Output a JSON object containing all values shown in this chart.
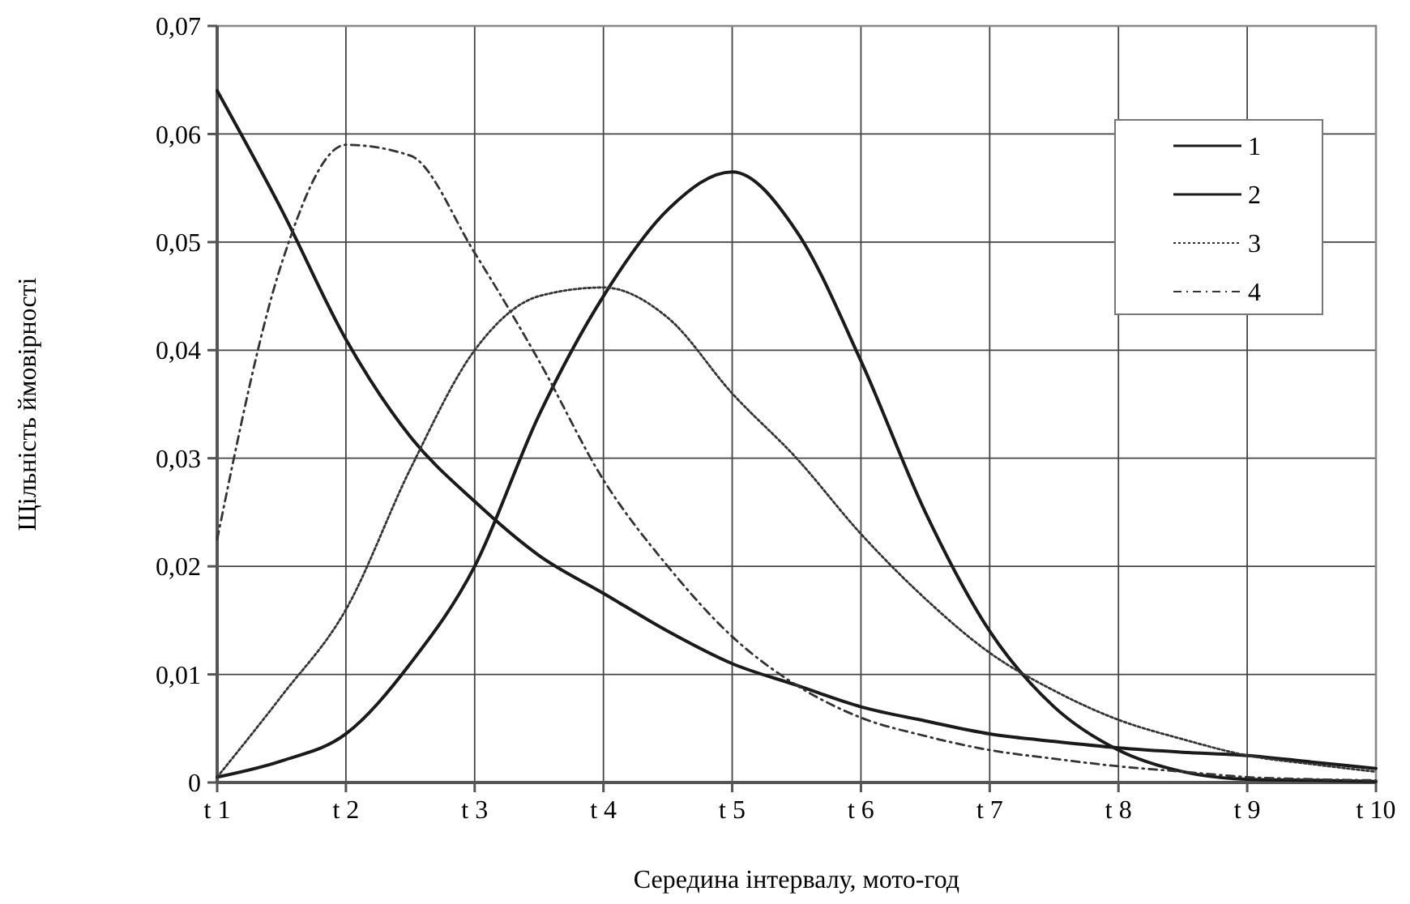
{
  "chart_data": {
    "type": "line",
    "xlabel": "Середина інтервалу, мото-год",
    "ylabel": "Щільність ймовірності",
    "categories": [
      "t 1",
      null,
      "t 2",
      null,
      "t 3",
      null,
      "t 4",
      null,
      "t 5",
      null,
      "t 6",
      null,
      "t 7",
      null,
      "t 8",
      null,
      "t 9",
      null,
      "t 10"
    ],
    "ylim": [
      0,
      0.07
    ],
    "yticks": [
      0,
      {
        "value": 0.01,
        "label": "0,01"
      },
      {
        "value": 0.02,
        "label": "0,02"
      },
      {
        "value": 0.03,
        "label": "0,03"
      },
      {
        "value": 0.04,
        "label": "0,04"
      },
      {
        "value": 0.05,
        "label": "0,05"
      },
      {
        "value": 0.06,
        "label": "0,06"
      },
      {
        "value": 0.07,
        "label": "0,07"
      }
    ],
    "grid": true,
    "legend": "top right",
    "series": [
      {
        "name": "1",
        "color": "#1a1a1a",
        "line_style": "solid",
        "values": [
          0.064,
          0.053,
          0.041,
          0.032,
          0.026,
          0.021,
          0.0175,
          0.014,
          0.011,
          0.009,
          0.007,
          0.0057,
          0.0045,
          0.0038,
          0.0032,
          0.0028,
          0.0025,
          0.0019,
          0.0013
        ]
      },
      {
        "name": "2",
        "color": "#1a1a1a",
        "line_style": "solid",
        "values": [
          0.0005,
          0.002,
          0.0045,
          0.011,
          0.02,
          0.034,
          0.045,
          0.053,
          0.0565,
          0.051,
          0.039,
          0.025,
          0.014,
          0.007,
          0.003,
          0.001,
          0.0003,
          0.0002,
          0.0001
        ]
      },
      {
        "name": "3",
        "color": "#333333",
        "line_style": "dotted",
        "values": [
          0.0005,
          0.008,
          0.016,
          0.029,
          0.04,
          0.045,
          0.0458,
          0.043,
          0.036,
          0.03,
          0.023,
          0.017,
          0.012,
          0.0085,
          0.0058,
          0.004,
          0.0025,
          0.0017,
          0.001
        ]
      },
      {
        "name": "4",
        "color": "#333333",
        "line_style": "dashed",
        "values": [
          0.0225,
          0.048,
          0.059,
          0.058,
          0.049,
          0.039,
          0.028,
          0.02,
          0.0135,
          0.009,
          0.006,
          0.0043,
          0.003,
          0.0022,
          0.0015,
          0.001,
          0.0005,
          0.0003,
          0.0002
        ]
      }
    ]
  }
}
